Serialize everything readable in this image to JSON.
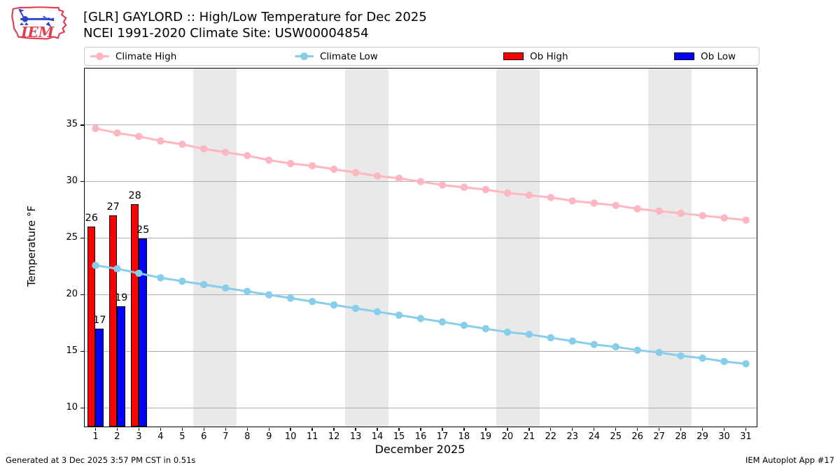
{
  "logo": {
    "text": "IEM"
  },
  "header": {
    "title": "[GLR] GAYLORD :: High/Low Temperature for Dec 2025",
    "subtitle": "NCEI 1991-2020 Climate Site: USW00004854"
  },
  "legend": {
    "items": [
      {
        "label": "Climate High",
        "color": "#ffb6c1",
        "kind": "line"
      },
      {
        "label": "Climate Low",
        "color": "#87ceeb",
        "kind": "line"
      },
      {
        "label": "Ob High",
        "color": "#ff0000",
        "kind": "patch"
      },
      {
        "label": "Ob Low",
        "color": "#0000ff",
        "kind": "patch"
      }
    ]
  },
  "chart_data": {
    "type": "line+bar",
    "title": "[GLR] GAYLORD :: High/Low Temperature for Dec 2025",
    "subtitle": "NCEI 1991-2020 Climate Site: USW00004854",
    "xlabel": "December 2025",
    "ylabel": "Temperature °F",
    "x": [
      1,
      2,
      3,
      4,
      5,
      6,
      7,
      8,
      9,
      10,
      11,
      12,
      13,
      14,
      15,
      16,
      17,
      18,
      19,
      20,
      21,
      22,
      23,
      24,
      25,
      26,
      27,
      28,
      29,
      30,
      31
    ],
    "series": [
      {
        "name": "Climate High",
        "type": "line",
        "color": "#ffb6c1",
        "values": [
          34.7,
          34.3,
          34.0,
          33.6,
          33.3,
          32.9,
          32.6,
          32.3,
          31.9,
          31.6,
          31.4,
          31.1,
          30.8,
          30.5,
          30.3,
          30.0,
          29.7,
          29.5,
          29.3,
          29.0,
          28.8,
          28.6,
          28.3,
          28.1,
          27.9,
          27.6,
          27.4,
          27.2,
          27.0,
          26.8,
          26.6
        ]
      },
      {
        "name": "Climate Low",
        "type": "line",
        "color": "#87ceeb",
        "values": [
          22.6,
          22.3,
          21.9,
          21.5,
          21.2,
          20.9,
          20.6,
          20.3,
          20.0,
          19.7,
          19.4,
          19.1,
          18.8,
          18.5,
          18.2,
          17.9,
          17.6,
          17.3,
          17.0,
          16.7,
          16.5,
          16.2,
          15.9,
          15.6,
          15.4,
          15.1,
          14.9,
          14.6,
          14.4,
          14.1,
          13.9
        ]
      },
      {
        "name": "Ob High",
        "type": "bar",
        "color": "#ff0000",
        "x": [
          1,
          2,
          3
        ],
        "values": [
          26,
          27,
          28
        ]
      },
      {
        "name": "Ob Low",
        "type": "bar",
        "color": "#0000ff",
        "x": [
          1,
          2,
          3
        ],
        "values": [
          17,
          19,
          25
        ]
      }
    ],
    "bar_value_labels": true,
    "yticks": [
      10,
      15,
      20,
      25,
      30,
      35
    ],
    "xticks": [
      1,
      2,
      3,
      4,
      5,
      6,
      7,
      8,
      9,
      10,
      11,
      12,
      13,
      14,
      15,
      16,
      17,
      18,
      19,
      20,
      21,
      22,
      23,
      24,
      25,
      26,
      27,
      28,
      29,
      30,
      31
    ],
    "xlim": [
      0.5,
      31.5
    ],
    "ylim": [
      8.35,
      40.0
    ],
    "grid": "horizontal-only",
    "legend_position": "top",
    "weekend_shading_days": [
      [
        5.5,
        7.5
      ],
      [
        12.5,
        14.5
      ],
      [
        19.5,
        21.5
      ],
      [
        26.5,
        28.5
      ]
    ],
    "colors": {
      "gridline": "#b0b0b0",
      "weekend_band": "#e9e9e9",
      "spine": "#000000"
    }
  },
  "footer": {
    "left": "Generated at 3 Dec 2025 3:57 PM CST in 0.51s",
    "right": "IEM Autoplot App #17"
  }
}
